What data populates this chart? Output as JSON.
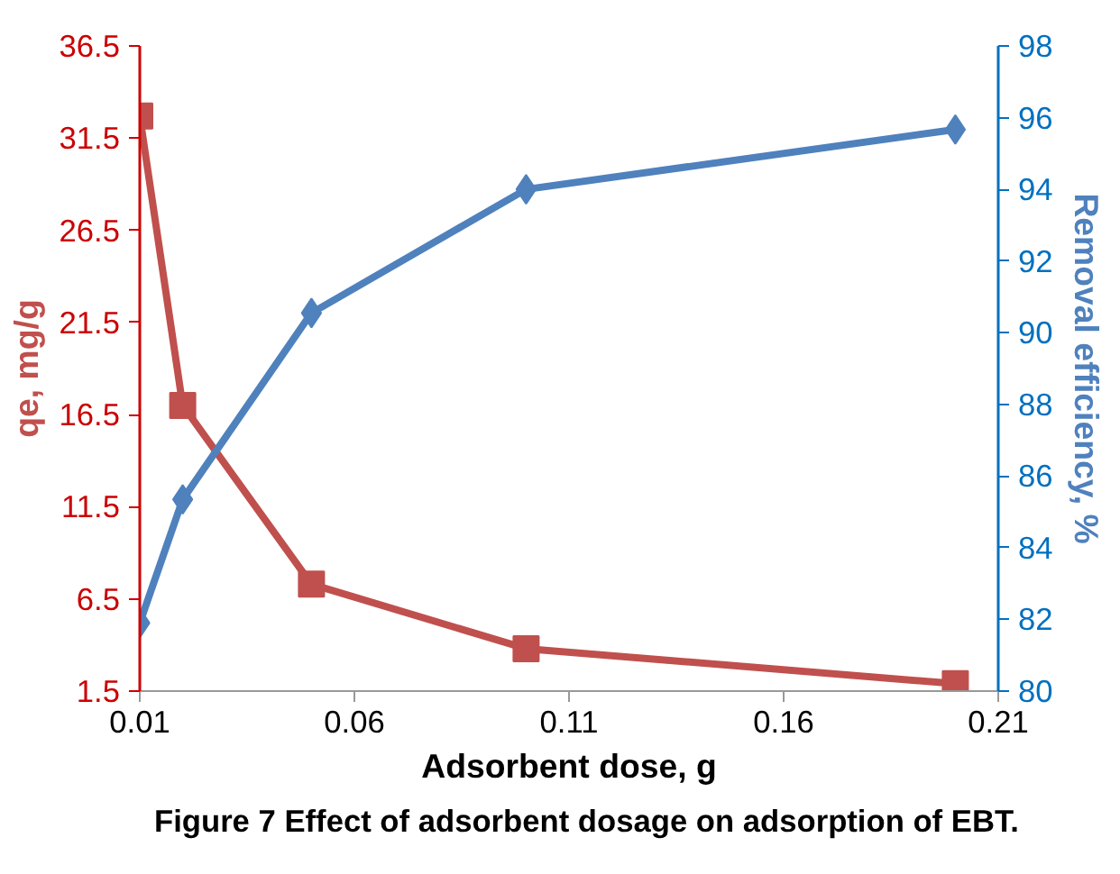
{
  "chart_data": {
    "type": "line",
    "xlabel": "Adsorbent dose, g",
    "ylabel": "qe, mg/g",
    "y2label": "Removal efficiency, %",
    "x": [
      0.01,
      0.02,
      0.05,
      0.1,
      0.2
    ],
    "series": [
      {
        "color": "#c0504d",
        "marker": "square",
        "values": [
          32.7,
          17.0,
          7.3,
          3.8,
          1.9
        ]
      },
      {
        "color": "#4f81bd",
        "marker": "diamond",
        "axis": "y2",
        "values": [
          81.9,
          85.35,
          90.55,
          94.0,
          95.67
        ]
      }
    ],
    "xlim": [
      0.01,
      0.21
    ],
    "xticks": [
      0.01,
      0.06,
      0.11,
      0.16,
      0.21
    ],
    "ylim": [
      1.5,
      36.5
    ],
    "yticks": [
      1.5,
      6.5,
      11.5,
      16.5,
      21.5,
      26.5,
      31.5,
      36.5
    ],
    "y2lim": [
      80,
      98
    ],
    "y2ticks": [
      80,
      82,
      84,
      86,
      88,
      90,
      92,
      94,
      96,
      98
    ],
    "grid": false,
    "annotations": [
      "Figure 7 Effect of adsorbent dosage on adsorption of EBT."
    ]
  }
}
